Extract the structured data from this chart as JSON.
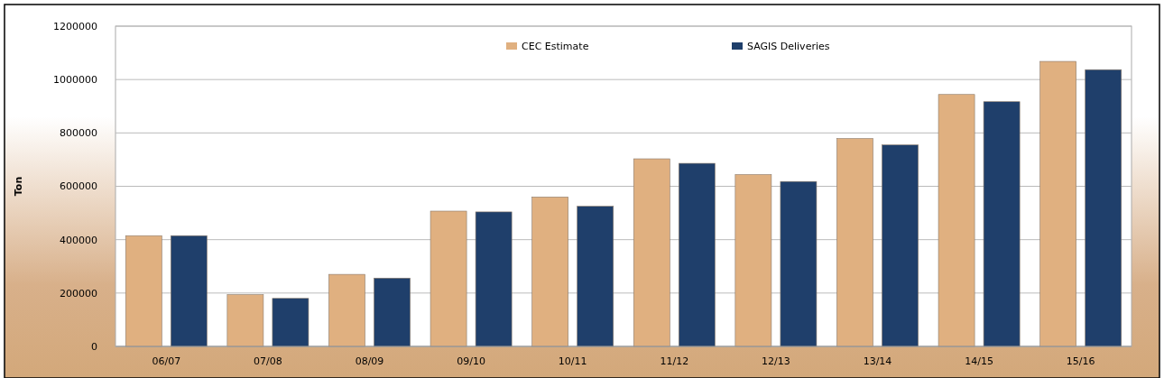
{
  "chart_data": {
    "type": "bar",
    "ylabel": "Ton",
    "categories": [
      "06/07",
      "07/08",
      "08/09",
      "09/10",
      "10/11",
      "11/12",
      "12/13",
      "13/14",
      "14/15",
      "15/16"
    ],
    "series": [
      {
        "name": "CEC Estimate",
        "color": "#e0b080",
        "values": [
          415000,
          194000,
          270000,
          507000,
          560000,
          703000,
          644000,
          779000,
          944000,
          1068000
        ]
      },
      {
        "name": "SAGIS Deliveries",
        "color": "#1f3f6b",
        "values": [
          415000,
          180000,
          256000,
          504000,
          525000,
          686000,
          618000,
          755000,
          917000,
          1037000
        ]
      }
    ],
    "ylim": [
      0,
      1200000
    ],
    "yticks": [
      0,
      200000,
      400000,
      600000,
      800000,
      1000000,
      1200000
    ],
    "grid": "y",
    "legend": "top"
  }
}
